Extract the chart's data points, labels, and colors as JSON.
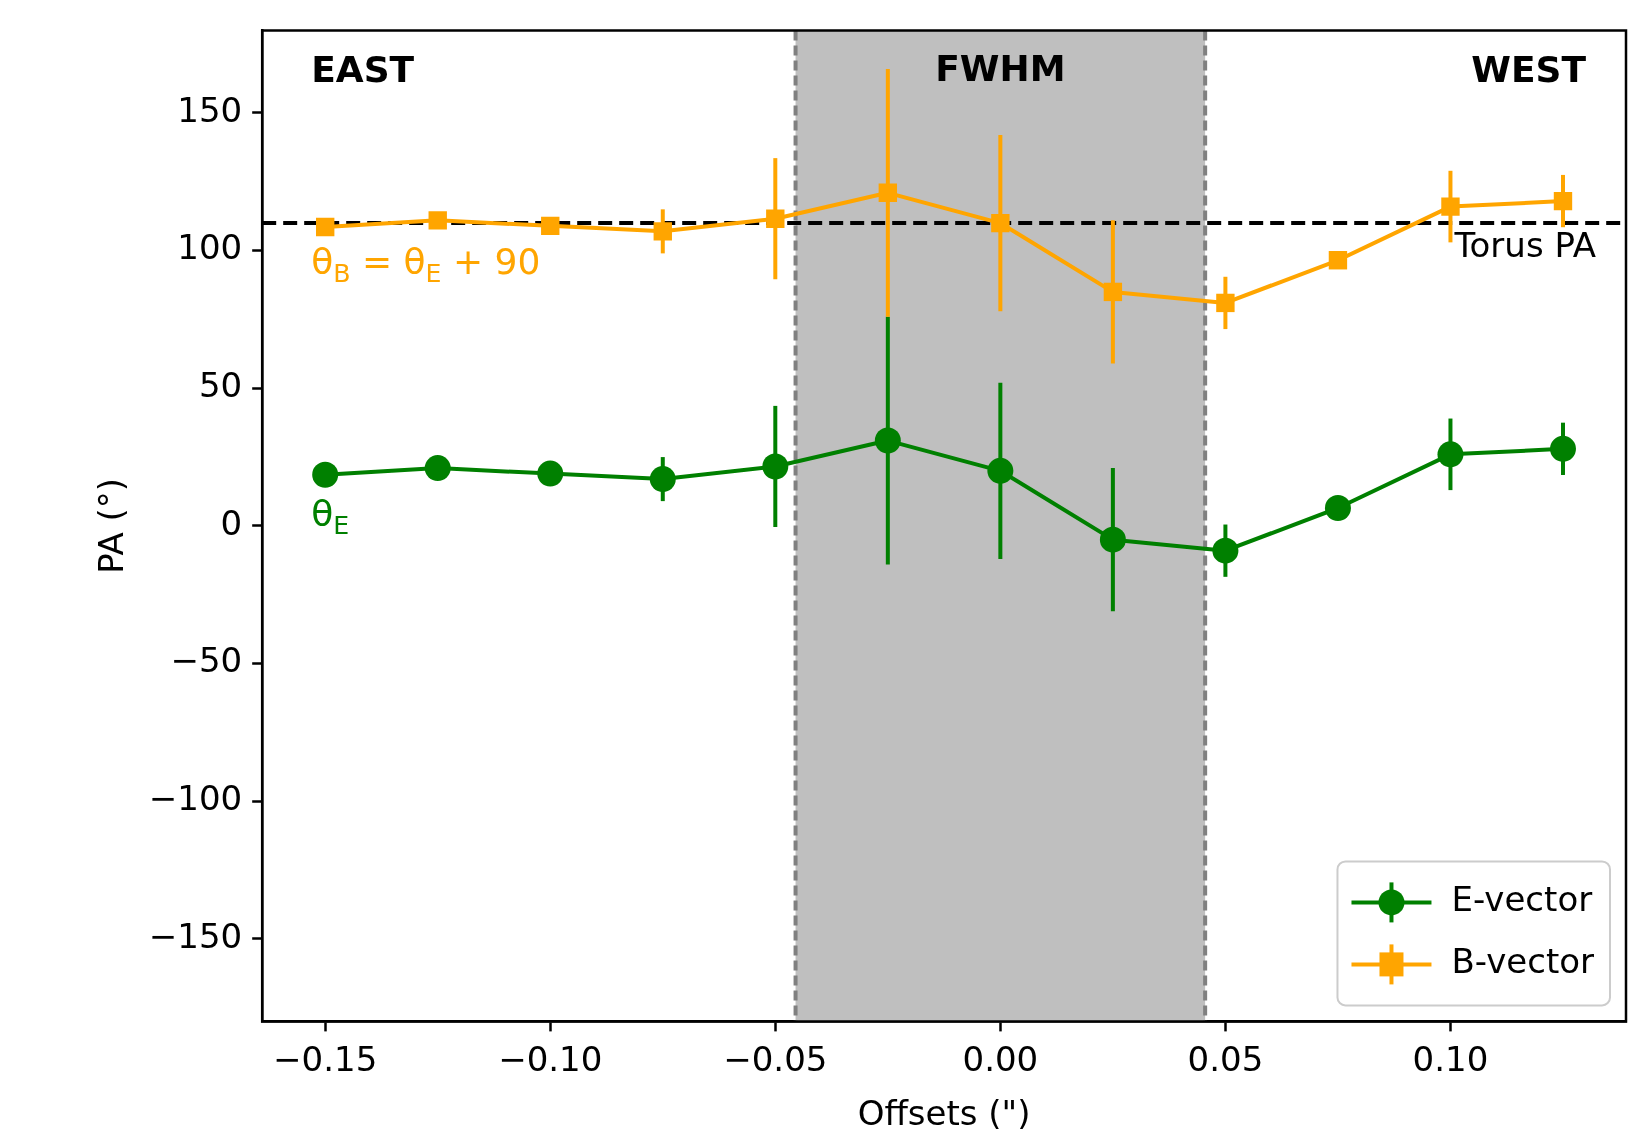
{
  "chart_data": {
    "type": "line",
    "xlabel": "Offsets (\")",
    "ylabel": "PA (°)",
    "x": [
      -0.15,
      -0.125,
      -0.1,
      -0.075,
      -0.05,
      -0.025,
      0,
      0.025,
      0.05,
      0.075,
      0.1,
      0.125
    ],
    "series": [
      {
        "name": "E-vector",
        "color": "#008000",
        "marker": "circle",
        "values": [
          18.6,
          21,
          19,
          17,
          21.6,
          31,
          20,
          -5,
          -9,
          6.5,
          26,
          28
        ],
        "errors": [
          null,
          null,
          null,
          8,
          22,
          45,
          32,
          26,
          9.5,
          null,
          13,
          9.5
        ]
      },
      {
        "name": "B-vector",
        "color": "#ffa500",
        "marker": "square",
        "values": [
          108.6,
          111,
          109,
          107,
          111.6,
          121,
          110,
          85,
          81,
          96.5,
          116,
          118
        ],
        "errors": [
          null,
          null,
          null,
          8,
          22,
          45,
          32,
          26,
          9.5,
          null,
          13,
          9.5
        ]
      }
    ],
    "xlim": [
      -0.164,
      0.139
    ],
    "ylim": [
      -180,
      180
    ],
    "xticks": [
      {
        "value": -0.15,
        "label": "−0.15"
      },
      {
        "value": -0.1,
        "label": "−0.10"
      },
      {
        "value": -0.05,
        "label": "−0.05"
      },
      {
        "value": 0,
        "label": "0.00"
      },
      {
        "value": 0.05,
        "label": "0.05"
      },
      {
        "value": 0.1,
        "label": "0.10"
      }
    ],
    "yticks": [
      {
        "value": -150,
        "label": "−150"
      },
      {
        "value": -100,
        "label": "−100"
      },
      {
        "value": -50,
        "label": "−50"
      },
      0,
      50,
      100,
      150
    ],
    "ref_lines": [
      {
        "axis": "y",
        "value": 110,
        "label": "Torus PA",
        "color": "#000000",
        "line_style": "dashed"
      },
      {
        "axis": "x",
        "value": -0.0455,
        "color": "#808080",
        "line_style": "dashed"
      },
      {
        "axis": "x",
        "value": 0.0455,
        "color": "#808080",
        "line_style": "dashed"
      }
    ],
    "bands": [
      {
        "axis": "x",
        "from": -0.0455,
        "to": 0.0455,
        "label": "FWHM",
        "color": "#bfbfbf"
      }
    ],
    "annotations": [
      "EAST",
      "WEST",
      "θ$_{B}$ = θ$_{E}$ + 90",
      "θ$_{E}$"
    ],
    "grid": false,
    "legend": "bottom right",
    "line_style": "solid"
  }
}
